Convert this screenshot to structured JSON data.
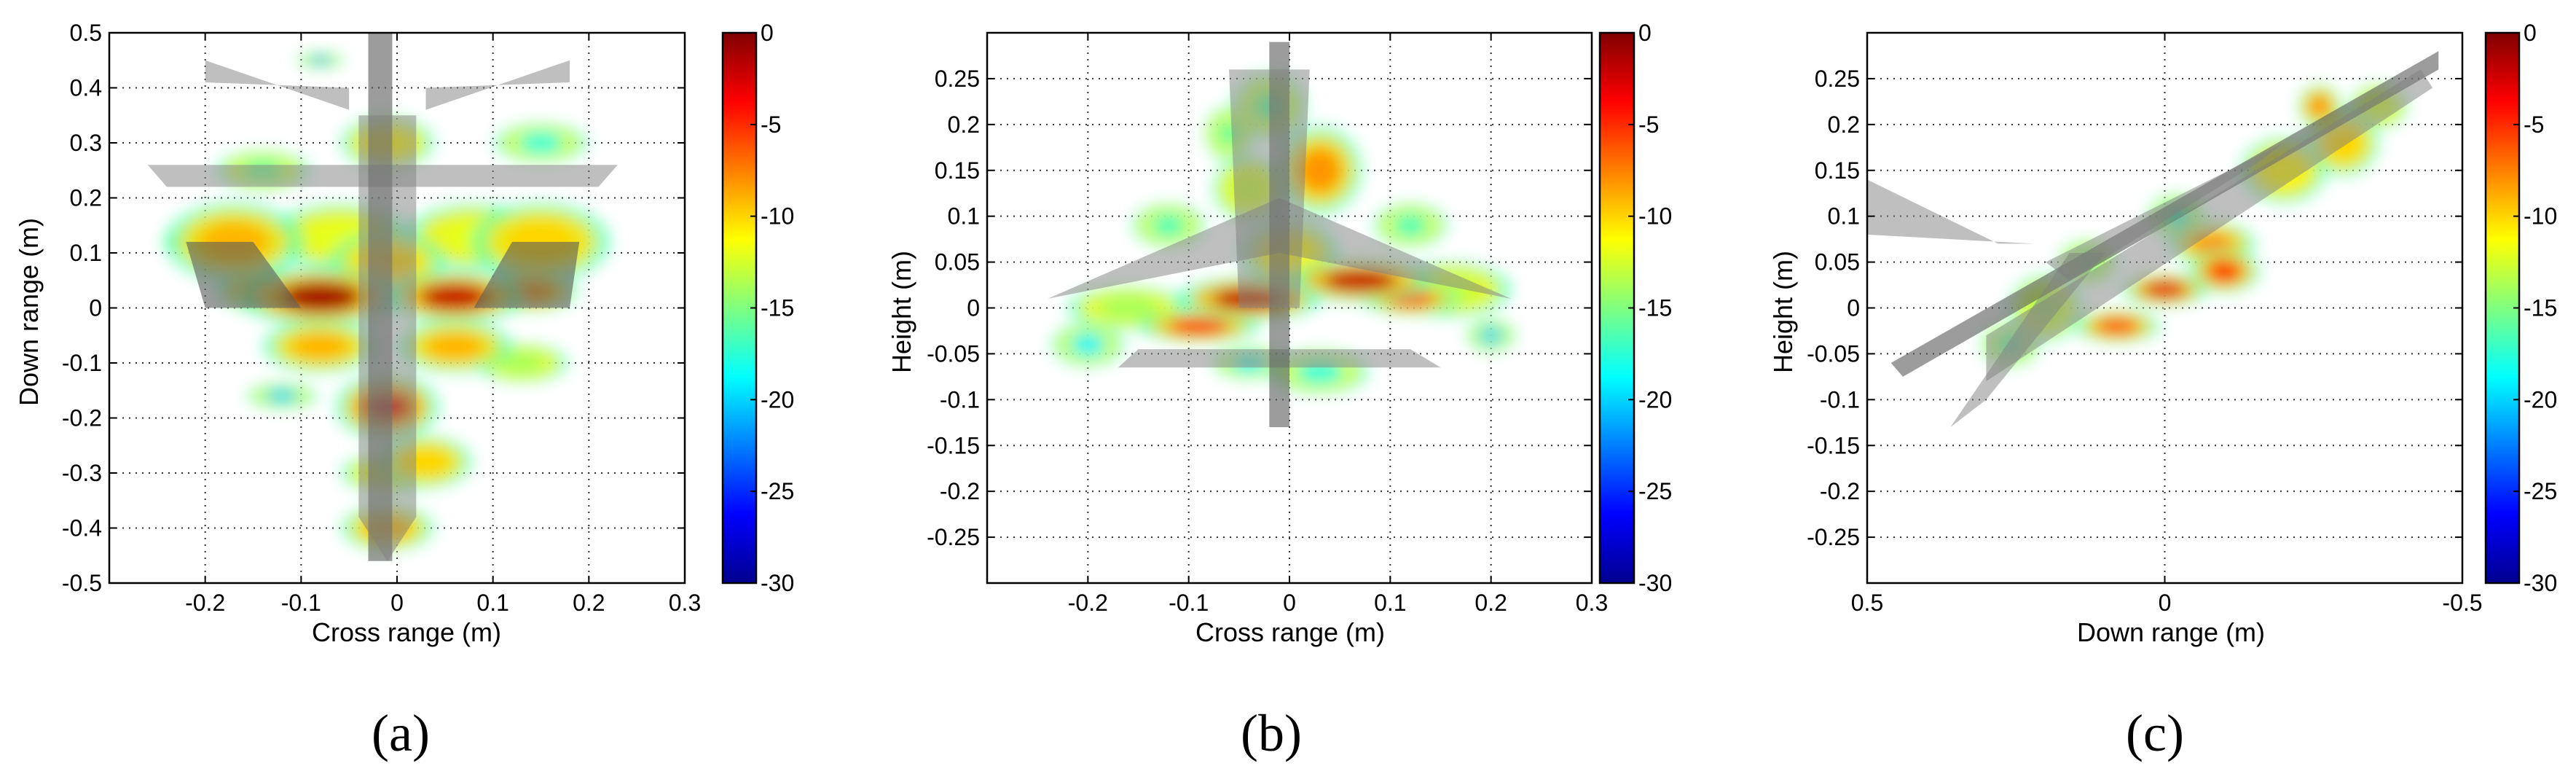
{
  "chart_data": [
    {
      "type": "heatmap",
      "panel_label": "(a)",
      "xlabel": "Cross range (m)",
      "ylabel": "Down range (m)",
      "xlim": [
        -0.3,
        0.3
      ],
      "ylim": [
        -0.5,
        0.5
      ],
      "x_reversed": false,
      "xticks": [
        -0.2,
        -0.1,
        0,
        0.1,
        0.2,
        0.3
      ],
      "xtick_labels": [
        "-0.2",
        "-0.1",
        "0",
        "0.1",
        "0.2",
        "0.3"
      ],
      "yticks": [
        -0.5,
        -0.4,
        -0.3,
        -0.2,
        -0.1,
        0,
        0.1,
        0.2,
        0.3,
        0.4,
        0.5
      ],
      "ytick_labels": [
        "-0.5",
        "-0.4",
        "-0.3",
        "-0.2",
        "-0.1",
        "0",
        "0.1",
        "0.2",
        "0.3",
        "0.4",
        "0.5"
      ],
      "grid": true,
      "colorbar": {
        "range": [
          -30,
          0
        ],
        "ticks": [
          0,
          -5,
          -10,
          -15,
          -20,
          -25,
          -30
        ],
        "tick_labels": [
          "0",
          "-5",
          "-10",
          "-15",
          "-20",
          "-25",
          "-30"
        ],
        "colormap": "jet"
      },
      "blobs": [
        {
          "x": -0.08,
          "y": 0.02,
          "rx": 0.07,
          "ry": 0.045,
          "v": -1
        },
        {
          "x": 0.06,
          "y": 0.02,
          "rx": 0.06,
          "ry": 0.04,
          "v": -2
        },
        {
          "x": -0.14,
          "y": 0.03,
          "rx": 0.04,
          "ry": 0.03,
          "v": -8
        },
        {
          "x": 0.14,
          "y": 0.03,
          "rx": 0.04,
          "ry": 0.03,
          "v": -8
        },
        {
          "x": -0.17,
          "y": 0.12,
          "rx": 0.06,
          "ry": 0.06,
          "v": -9
        },
        {
          "x": 0.15,
          "y": 0.12,
          "rx": 0.06,
          "ry": 0.06,
          "v": -10
        },
        {
          "x": -0.06,
          "y": 0.13,
          "rx": 0.06,
          "ry": 0.05,
          "v": -12
        },
        {
          "x": 0.08,
          "y": 0.13,
          "rx": 0.06,
          "ry": 0.05,
          "v": -12
        },
        {
          "x": -0.01,
          "y": 0.08,
          "rx": 0.05,
          "ry": 0.05,
          "v": -10
        },
        {
          "x": -0.01,
          "y": 0.3,
          "rx": 0.04,
          "ry": 0.04,
          "v": -11
        },
        {
          "x": 0.15,
          "y": 0.3,
          "rx": 0.04,
          "ry": 0.03,
          "v": -18
        },
        {
          "x": -0.14,
          "y": 0.25,
          "rx": 0.04,
          "ry": 0.03,
          "v": -16
        },
        {
          "x": -0.08,
          "y": -0.07,
          "rx": 0.05,
          "ry": 0.04,
          "v": -9
        },
        {
          "x": 0.06,
          "y": -0.07,
          "rx": 0.05,
          "ry": 0.04,
          "v": -9
        },
        {
          "x": 0.13,
          "y": -0.1,
          "rx": 0.04,
          "ry": 0.03,
          "v": -14
        },
        {
          "x": -0.12,
          "y": -0.16,
          "rx": 0.03,
          "ry": 0.02,
          "v": -20
        },
        {
          "x": -0.01,
          "y": -0.18,
          "rx": 0.045,
          "ry": 0.05,
          "v": -3
        },
        {
          "x": 0.03,
          "y": -0.28,
          "rx": 0.04,
          "ry": 0.04,
          "v": -10
        },
        {
          "x": -0.01,
          "y": -0.3,
          "rx": 0.04,
          "ry": 0.03,
          "v": -12
        },
        {
          "x": -0.01,
          "y": -0.4,
          "rx": 0.04,
          "ry": 0.035,
          "v": -9
        },
        {
          "x": -0.08,
          "y": 0.45,
          "rx": 0.02,
          "ry": 0.012,
          "v": -21
        },
        {
          "x": -0.22,
          "y": 0.12,
          "rx": 0.02,
          "ry": 0.015,
          "v": -20
        }
      ],
      "aircraft": [
        {
          "shape": [
            [
              -0.2,
              0.45
            ],
            [
              -0.05,
              0.36
            ],
            [
              -0.05,
              0.4
            ],
            [
              -0.2,
              0.41
            ]
          ],
          "dark": false
        },
        {
          "shape": [
            [
              0.18,
              0.45
            ],
            [
              0.03,
              0.36
            ],
            [
              0.03,
              0.4
            ],
            [
              0.18,
              0.41
            ]
          ],
          "dark": false
        },
        {
          "shape": [
            [
              -0.26,
              0.26
            ],
            [
              0.23,
              0.26
            ],
            [
              0.21,
              0.22
            ],
            [
              -0.24,
              0.22
            ]
          ],
          "dark": false
        },
        {
          "shape": [
            [
              -0.03,
              0.5
            ],
            [
              -0.005,
              0.5
            ],
            [
              -0.005,
              -0.46
            ],
            [
              -0.03,
              -0.46
            ]
          ],
          "dark": true
        },
        {
          "shape": [
            [
              -0.04,
              0.35
            ],
            [
              0.02,
              0.35
            ],
            [
              0.02,
              -0.38
            ],
            [
              -0.01,
              -0.46
            ],
            [
              -0.04,
              -0.38
            ]
          ],
          "dark": false
        },
        {
          "shape": [
            [
              -0.22,
              0.12
            ],
            [
              -0.15,
              0.12
            ],
            [
              -0.1,
              0.0
            ],
            [
              -0.2,
              0.0
            ]
          ],
          "dark": true
        },
        {
          "shape": [
            [
              0.12,
              0.12
            ],
            [
              0.19,
              0.12
            ],
            [
              0.18,
              0.0
            ],
            [
              0.08,
              0.0
            ]
          ],
          "dark": true
        }
      ]
    },
    {
      "type": "heatmap",
      "panel_label": "(b)",
      "xlabel": "Cross range (m)",
      "ylabel": "Height (m)",
      "xlim": [
        -0.3,
        0.3
      ],
      "ylim": [
        -0.3,
        0.3
      ],
      "x_reversed": false,
      "xticks": [
        -0.2,
        -0.1,
        0,
        0.1,
        0.2,
        0.3
      ],
      "xtick_labels": [
        "-0.2",
        "-0.1",
        "0",
        "0.1",
        "0.2",
        "0.3"
      ],
      "yticks": [
        -0.25,
        -0.2,
        -0.15,
        -0.1,
        -0.05,
        0,
        0.05,
        0.1,
        0.15,
        0.2,
        0.25
      ],
      "ytick_labels": [
        "-0.25",
        "-0.2",
        "-0.15",
        "-0.1",
        "-0.05",
        "0",
        "0.05",
        "0.1",
        "0.15",
        "0.2",
        "0.25"
      ],
      "grid": true,
      "colorbar": {
        "range": [
          -30,
          0
        ],
        "ticks": [
          0,
          -5,
          -10,
          -15,
          -20,
          -25,
          -30
        ],
        "tick_labels": [
          "0",
          "-5",
          "-10",
          "-15",
          "-20",
          "-25",
          "-30"
        ],
        "colormap": "jet"
      },
      "blobs": [
        {
          "x": -0.04,
          "y": 0.01,
          "rx": 0.06,
          "ry": 0.02,
          "v": -2
        },
        {
          "x": 0.07,
          "y": 0.03,
          "rx": 0.06,
          "ry": 0.02,
          "v": -2
        },
        {
          "x": -0.09,
          "y": -0.02,
          "rx": 0.05,
          "ry": 0.015,
          "v": -5
        },
        {
          "x": 0.12,
          "y": 0.01,
          "rx": 0.04,
          "ry": 0.015,
          "v": -6
        },
        {
          "x": -0.16,
          "y": 0.0,
          "rx": 0.05,
          "ry": 0.02,
          "v": -14
        },
        {
          "x": 0.16,
          "y": 0.02,
          "rx": 0.05,
          "ry": 0.025,
          "v": -13
        },
        {
          "x": 0.0,
          "y": 0.06,
          "rx": 0.04,
          "ry": 0.03,
          "v": -11
        },
        {
          "x": -0.04,
          "y": 0.13,
          "rx": 0.03,
          "ry": 0.03,
          "v": -13
        },
        {
          "x": 0.03,
          "y": 0.15,
          "rx": 0.035,
          "ry": 0.04,
          "v": -8
        },
        {
          "x": -0.02,
          "y": 0.22,
          "rx": 0.03,
          "ry": 0.03,
          "v": -16
        },
        {
          "x": -0.06,
          "y": 0.19,
          "rx": 0.02,
          "ry": 0.025,
          "v": -16
        },
        {
          "x": -0.2,
          "y": -0.04,
          "rx": 0.03,
          "ry": 0.02,
          "v": -19
        },
        {
          "x": 0.2,
          "y": -0.03,
          "rx": 0.02,
          "ry": 0.015,
          "v": -20
        },
        {
          "x": 0.03,
          "y": -0.07,
          "rx": 0.04,
          "ry": 0.02,
          "v": -18
        },
        {
          "x": -0.04,
          "y": -0.06,
          "rx": 0.03,
          "ry": 0.015,
          "v": -19
        },
        {
          "x": 0.12,
          "y": 0.09,
          "rx": 0.03,
          "ry": 0.02,
          "v": -17
        },
        {
          "x": -0.12,
          "y": 0.09,
          "rx": 0.03,
          "ry": 0.02,
          "v": -17
        }
      ],
      "aircraft": [
        {
          "shape": [
            [
              -0.24,
              0.01
            ],
            [
              -0.01,
              0.12
            ],
            [
              0.22,
              0.01
            ],
            [
              -0.01,
              0.06
            ]
          ],
          "dark": false
        },
        {
          "shape": [
            [
              -0.17,
              -0.065
            ],
            [
              0.15,
              -0.065
            ],
            [
              0.12,
              -0.045
            ],
            [
              -0.15,
              -0.045
            ]
          ],
          "dark": false
        },
        {
          "shape": [
            [
              -0.02,
              0.29
            ],
            [
              0.0,
              0.29
            ],
            [
              0.0,
              -0.13
            ],
            [
              -0.02,
              -0.13
            ]
          ],
          "dark": true
        },
        {
          "shape": [
            [
              -0.06,
              0.26
            ],
            [
              0.02,
              0.26
            ],
            [
              0.01,
              0.0
            ],
            [
              -0.05,
              0.0
            ]
          ],
          "dark": false
        }
      ]
    },
    {
      "type": "heatmap",
      "panel_label": "(c)",
      "xlabel": "Down range (m)",
      "ylabel": "Height (m)",
      "xlim": [
        0.5,
        -0.5
      ],
      "ylim": [
        -0.3,
        0.3
      ],
      "x_reversed": true,
      "xticks": [
        0.5,
        0,
        -0.5
      ],
      "xtick_labels": [
        "0.5",
        "0",
        "-0.5"
      ],
      "yticks": [
        -0.25,
        -0.2,
        -0.15,
        -0.1,
        -0.05,
        0,
        0.05,
        0.1,
        0.15,
        0.2,
        0.25
      ],
      "ytick_labels": [
        "-0.25",
        "-0.2",
        "-0.15",
        "-0.1",
        "-0.05",
        "0",
        "0.05",
        "0.1",
        "0.15",
        "0.2",
        "0.25"
      ],
      "grid": true,
      "colorbar": {
        "range": [
          -30,
          0
        ],
        "ticks": [
          0,
          -5,
          -10,
          -15,
          -20,
          -25,
          -30
        ],
        "tick_labels": [
          "0",
          "-5",
          "-10",
          "-15",
          "-20",
          "-25",
          "-30"
        ],
        "colormap": "jet"
      },
      "blobs": [
        {
          "x": 0.0,
          "y": 0.02,
          "rx": 0.06,
          "ry": 0.015,
          "v": -3
        },
        {
          "x": -0.08,
          "y": 0.07,
          "rx": 0.06,
          "ry": 0.02,
          "v": -8
        },
        {
          "x": 0.08,
          "y": -0.02,
          "rx": 0.06,
          "ry": 0.015,
          "v": -6
        },
        {
          "x": -0.2,
          "y": 0.15,
          "rx": 0.06,
          "ry": 0.03,
          "v": -11
        },
        {
          "x": -0.3,
          "y": 0.18,
          "rx": 0.05,
          "ry": 0.03,
          "v": -10
        },
        {
          "x": -0.36,
          "y": 0.22,
          "rx": 0.04,
          "ry": 0.02,
          "v": -13
        },
        {
          "x": 0.2,
          "y": 0.0,
          "rx": 0.05,
          "ry": 0.03,
          "v": -14
        },
        {
          "x": 0.26,
          "y": -0.04,
          "rx": 0.04,
          "ry": 0.02,
          "v": -17
        },
        {
          "x": -0.26,
          "y": 0.22,
          "rx": 0.03,
          "ry": 0.02,
          "v": -8
        },
        {
          "x": -0.1,
          "y": 0.04,
          "rx": 0.05,
          "ry": 0.02,
          "v": -5
        },
        {
          "x": 0.13,
          "y": 0.05,
          "rx": 0.04,
          "ry": 0.02,
          "v": -16
        },
        {
          "x": -0.02,
          "y": 0.1,
          "rx": 0.04,
          "ry": 0.02,
          "v": -18
        }
      ],
      "aircraft": [
        {
          "shape": [
            [
              0.46,
              -0.06
            ],
            [
              -0.46,
              0.28
            ],
            [
              -0.46,
              0.26
            ],
            [
              0.44,
              -0.075
            ]
          ],
          "dark": true
        },
        {
          "shape": [
            [
              0.3,
              -0.03
            ],
            [
              -0.43,
              0.26
            ],
            [
              -0.45,
              0.24
            ],
            [
              0.3,
              -0.08
            ]
          ],
          "dark": false
        },
        {
          "shape": [
            [
              0.5,
              0.14
            ],
            [
              0.28,
              0.07
            ],
            [
              0.22,
              0.07
            ],
            [
              0.5,
              0.08
            ]
          ],
          "dark": false
        },
        {
          "shape": [
            [
              0.36,
              -0.13
            ],
            [
              0.16,
              0.06
            ],
            [
              0.1,
              0.06
            ],
            [
              0.3,
              -0.1
            ]
          ],
          "dark": false
        },
        {
          "shape": [
            [
              0.2,
              0.05
            ],
            [
              -0.2,
              0.18
            ],
            [
              -0.16,
              0.16
            ],
            [
              0.16,
              0.03
            ]
          ],
          "dark": false
        }
      ]
    }
  ]
}
